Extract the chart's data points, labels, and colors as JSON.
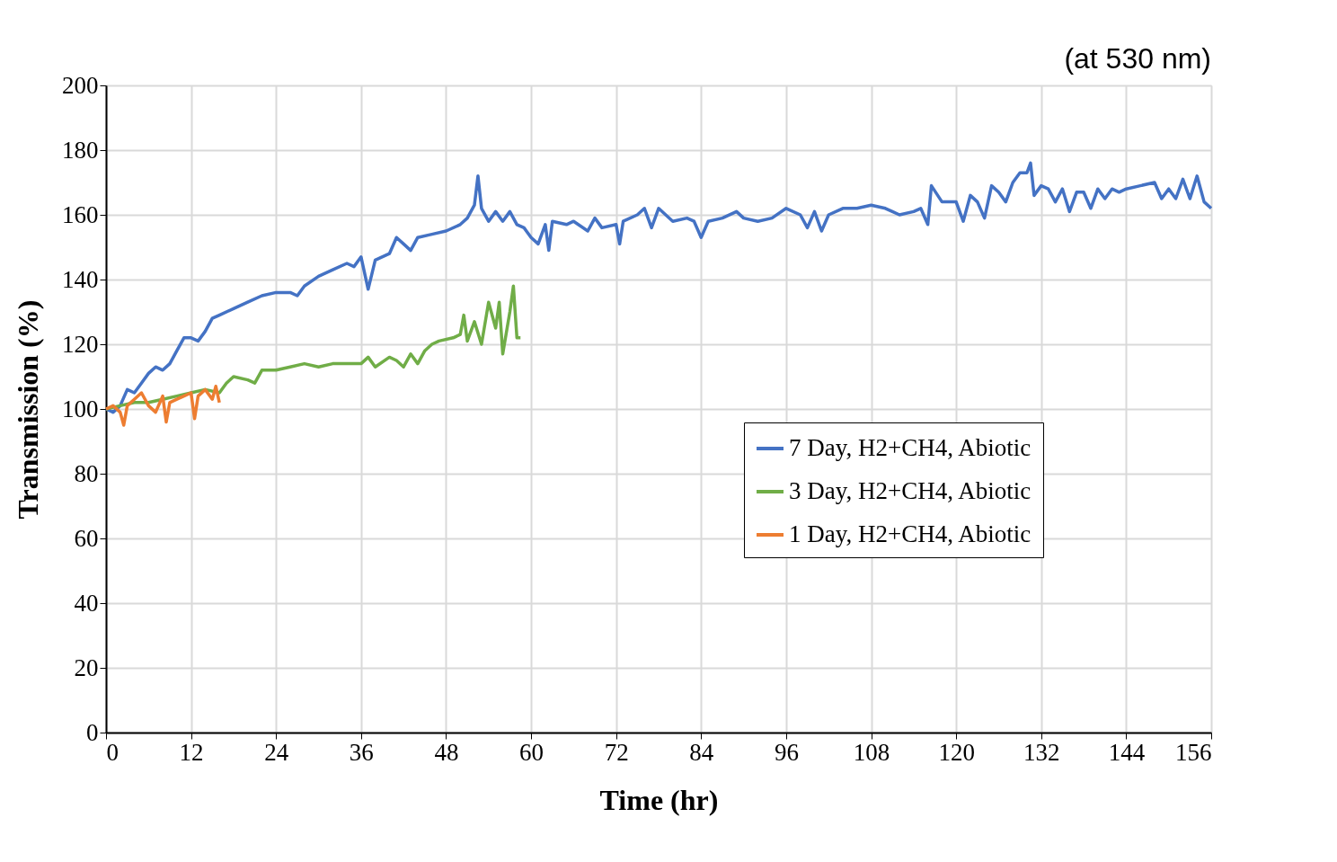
{
  "chart_data": {
    "type": "line",
    "xlabel": "Time (hr)",
    "ylabel": "Transmission (%)",
    "annotations": [
      "(at 530 nm)"
    ],
    "xlim": [
      0,
      156
    ],
    "xticks": [
      0,
      12,
      24,
      36,
      48,
      60,
      72,
      84,
      96,
      108,
      120,
      132,
      144,
      156
    ],
    "ylim": [
      0,
      200
    ],
    "yticks": [
      0,
      20,
      40,
      60,
      80,
      100,
      120,
      140,
      160,
      180,
      200
    ],
    "grid": true,
    "legend": "right",
    "marker": "none",
    "line_style": "solid",
    "series": [
      {
        "name": "7 Day, H2+CH4, Abiotic",
        "color": "#4472c4",
        "x": [
          0,
          1,
          2,
          3,
          4,
          5,
          6,
          7,
          8,
          9,
          10,
          11,
          12,
          13,
          14,
          15,
          16,
          18,
          20,
          22,
          24,
          26,
          27,
          28,
          30,
          32,
          34,
          35,
          36,
          37,
          38,
          40,
          41,
          42,
          43,
          44,
          46,
          48,
          50,
          51,
          52,
          52.5,
          53,
          54,
          55,
          56,
          57,
          58,
          59,
          60,
          61,
          62,
          62.5,
          63,
          65,
          66,
          68,
          69,
          70,
          72,
          72.5,
          73,
          75,
          76,
          77,
          78,
          80,
          82,
          83,
          84,
          85,
          87,
          89,
          90,
          92,
          94,
          96,
          98,
          99,
          100,
          101,
          102,
          104,
          106,
          108,
          110,
          111,
          112,
          114,
          115,
          116,
          116.5,
          118,
          120,
          121,
          122,
          123,
          124,
          125,
          126,
          127,
          128,
          129,
          130,
          130.5,
          131,
          132,
          133,
          134,
          135,
          136,
          137,
          138,
          139,
          140,
          141,
          142,
          143,
          144,
          146,
          148,
          149,
          150,
          151,
          152,
          153,
          154,
          155,
          156
        ],
        "values": [
          100,
          99,
          101,
          106,
          105,
          108,
          111,
          113,
          112,
          114,
          118,
          122,
          122,
          121,
          124,
          128,
          129,
          131,
          133,
          135,
          136,
          136,
          135,
          138,
          141,
          143,
          145,
          144,
          147,
          137,
          146,
          148,
          153,
          151,
          149,
          153,
          154,
          155,
          157,
          159,
          163,
          172,
          162,
          158,
          161,
          158,
          161,
          157,
          156,
          153,
          151,
          157,
          149,
          158,
          157,
          158,
          155,
          159,
          156,
          157,
          151,
          158,
          160,
          162,
          156,
          162,
          158,
          159,
          158,
          153,
          158,
          159,
          161,
          159,
          158,
          159,
          162,
          160,
          156,
          161,
          155,
          160,
          162,
          162,
          163,
          162,
          161,
          160,
          161,
          162,
          157,
          169,
          164,
          164,
          158,
          166,
          164,
          159,
          169,
          167,
          164,
          170,
          173,
          173,
          176,
          166,
          169,
          168,
          164,
          168,
          161,
          167,
          167,
          162,
          168,
          165,
          168,
          167,
          168,
          169,
          170,
          165,
          168,
          165,
          171,
          165,
          172,
          164,
          162
        ]
      },
      {
        "name": "3 Day, H2+CH4, Abiotic",
        "color": "#70ad47",
        "x": [
          0,
          2,
          4,
          6,
          8,
          10,
          12,
          14,
          16,
          17,
          18,
          20,
          21,
          22,
          24,
          26,
          28,
          30,
          32,
          34,
          36,
          37,
          38,
          40,
          41,
          42,
          43,
          44,
          45,
          46,
          47,
          49,
          50,
          50.5,
          51,
          52,
          53,
          54,
          55,
          55.5,
          56,
          57,
          57.5,
          58,
          58.5
        ],
        "values": [
          100,
          101,
          102,
          102,
          103,
          104,
          105,
          106,
          105,
          108,
          110,
          109,
          108,
          112,
          112,
          113,
          114,
          113,
          114,
          114,
          114,
          116,
          113,
          116,
          115,
          113,
          117,
          114,
          118,
          120,
          121,
          122,
          123,
          129,
          121,
          127,
          120,
          133,
          125,
          133,
          117,
          130,
          138,
          122,
          122
        ]
      },
      {
        "name": "1 Day, H2+CH4, Abiotic",
        "color": "#ed7d31",
        "x": [
          0,
          1,
          2,
          2.5,
          3,
          4,
          5,
          6,
          7,
          8,
          8.5,
          9,
          10,
          11,
          12,
          12.5,
          13,
          14,
          15,
          15.5,
          16
        ],
        "values": [
          100,
          101,
          99,
          95,
          101,
          103,
          105,
          101,
          99,
          104,
          96,
          102,
          103,
          104,
          105,
          97,
          104,
          106,
          103,
          107,
          102
        ]
      }
    ]
  }
}
